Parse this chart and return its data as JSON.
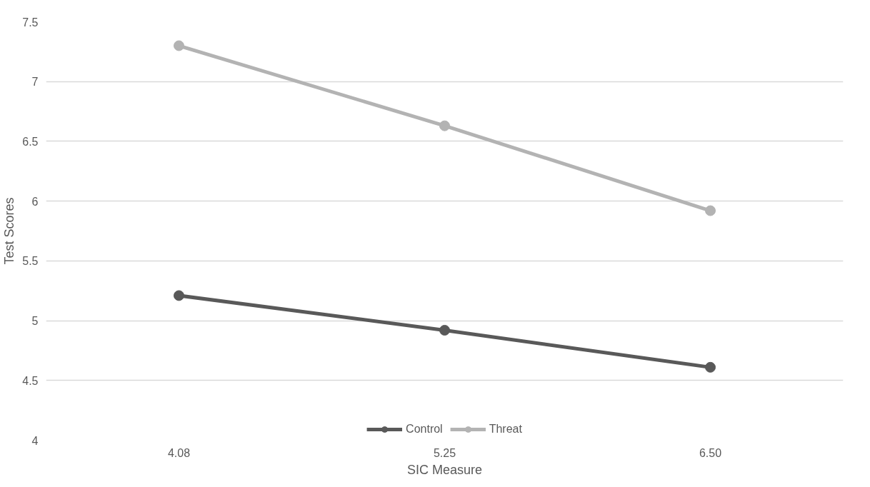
{
  "chart_data": {
    "type": "line",
    "xlabel": "SIC Measure",
    "ylabel": "Test Scores",
    "categories": [
      "4.08",
      "5.25",
      "6.50"
    ],
    "series": [
      {
        "name": "Control",
        "color": "#595959",
        "values": [
          5.21,
          4.92,
          4.61
        ]
      },
      {
        "name": "Threat",
        "color": "#b3b3b3",
        "values": [
          7.3,
          6.63,
          5.92
        ]
      }
    ],
    "ylim": [
      4,
      7.5
    ],
    "yticks": [
      4,
      4.5,
      5,
      5.5,
      6,
      6.5,
      7,
      7.5
    ],
    "grid": "y",
    "legend": "bottom",
    "marker": "circle",
    "line_style": "solid"
  }
}
